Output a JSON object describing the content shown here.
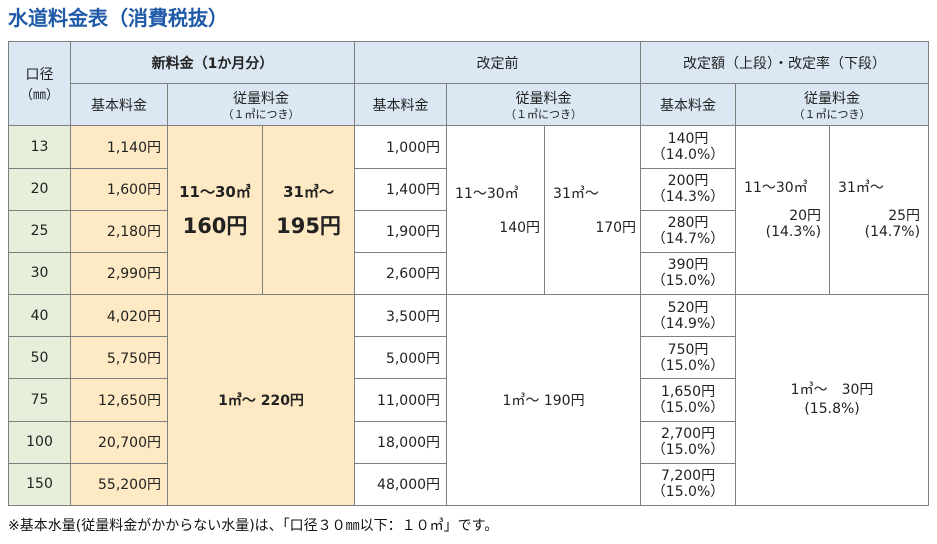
{
  "title": "水道料金表（消費税抜）",
  "headers": {
    "bore": "口径",
    "bore_unit": "（㎜）",
    "new_fee": "新料金（1か月分）",
    "before": "改定前",
    "change": "改定額（上段）・改定率（下段）",
    "basic_fee": "基本料金",
    "volume_fee": "従量料金",
    "per_m3": "（１㎥につき）"
  },
  "rows": [
    {
      "bore": "13",
      "new_basic": "1,140円",
      "old_basic": "1,000円",
      "diff_amount": "140円",
      "diff_rate": "（14.0%）"
    },
    {
      "bore": "20",
      "new_basic": "1,600円",
      "old_basic": "1,400円",
      "diff_amount": "200円",
      "diff_rate": "（14.3%）"
    },
    {
      "bore": "25",
      "new_basic": "2,180円",
      "old_basic": "1,900円",
      "diff_amount": "280円",
      "diff_rate": "（14.7%）"
    },
    {
      "bore": "30",
      "new_basic": "2,990円",
      "old_basic": "2,600円",
      "diff_amount": "390円",
      "diff_rate": "（15.0%）"
    },
    {
      "bore": "40",
      "new_basic": "4,020円",
      "old_basic": "3,500円",
      "diff_amount": "520円",
      "diff_rate": "（14.9%）"
    },
    {
      "bore": "50",
      "new_basic": "5,750円",
      "old_basic": "5,000円",
      "diff_amount": "750円",
      "diff_rate": "（15.0%）"
    },
    {
      "bore": "75",
      "new_basic": "12,650円",
      "old_basic": "11,000円",
      "diff_amount": "1,650円",
      "diff_rate": "（15.0%）"
    },
    {
      "bore": "100",
      "new_basic": "20,700円",
      "old_basic": "18,000円",
      "diff_amount": "2,700円",
      "diff_rate": "（15.0%）"
    },
    {
      "bore": "150",
      "new_basic": "55,200円",
      "old_basic": "48,000円",
      "diff_amount": "7,200円",
      "diff_rate": "（15.0%）"
    }
  ],
  "small_bore_volume": {
    "new_range1": "11～30㎥",
    "new_amount1": "160円",
    "new_range2": "31㎥～",
    "new_amount2": "195円",
    "old_range1": "11～30㎥",
    "old_amount1": "140円",
    "old_range2": "31㎥～",
    "old_amount2": "170円",
    "diff_range1": "11～30㎥",
    "diff_amount1": "20円",
    "diff_rate1": "(14.3%)",
    "diff_range2": "31㎥～",
    "diff_amount2": "25円",
    "diff_rate2": "(14.7%)"
  },
  "large_bore_volume": {
    "new": "1㎥～ 220円",
    "old": "1㎥～ 190円",
    "diff_amount": "1㎥～　30円",
    "diff_rate": "(15.8%)"
  },
  "note": "※基本水量(従量料金がかからない水量)は、「口径３０㎜以下：１０㎥」です。",
  "colors": {
    "title": "#1f5aa8",
    "header_bg": "#dbe8f4",
    "bore_bg": "#e5efd9",
    "new_bg": "#fde9c3",
    "new_text": "#e8251e"
  }
}
